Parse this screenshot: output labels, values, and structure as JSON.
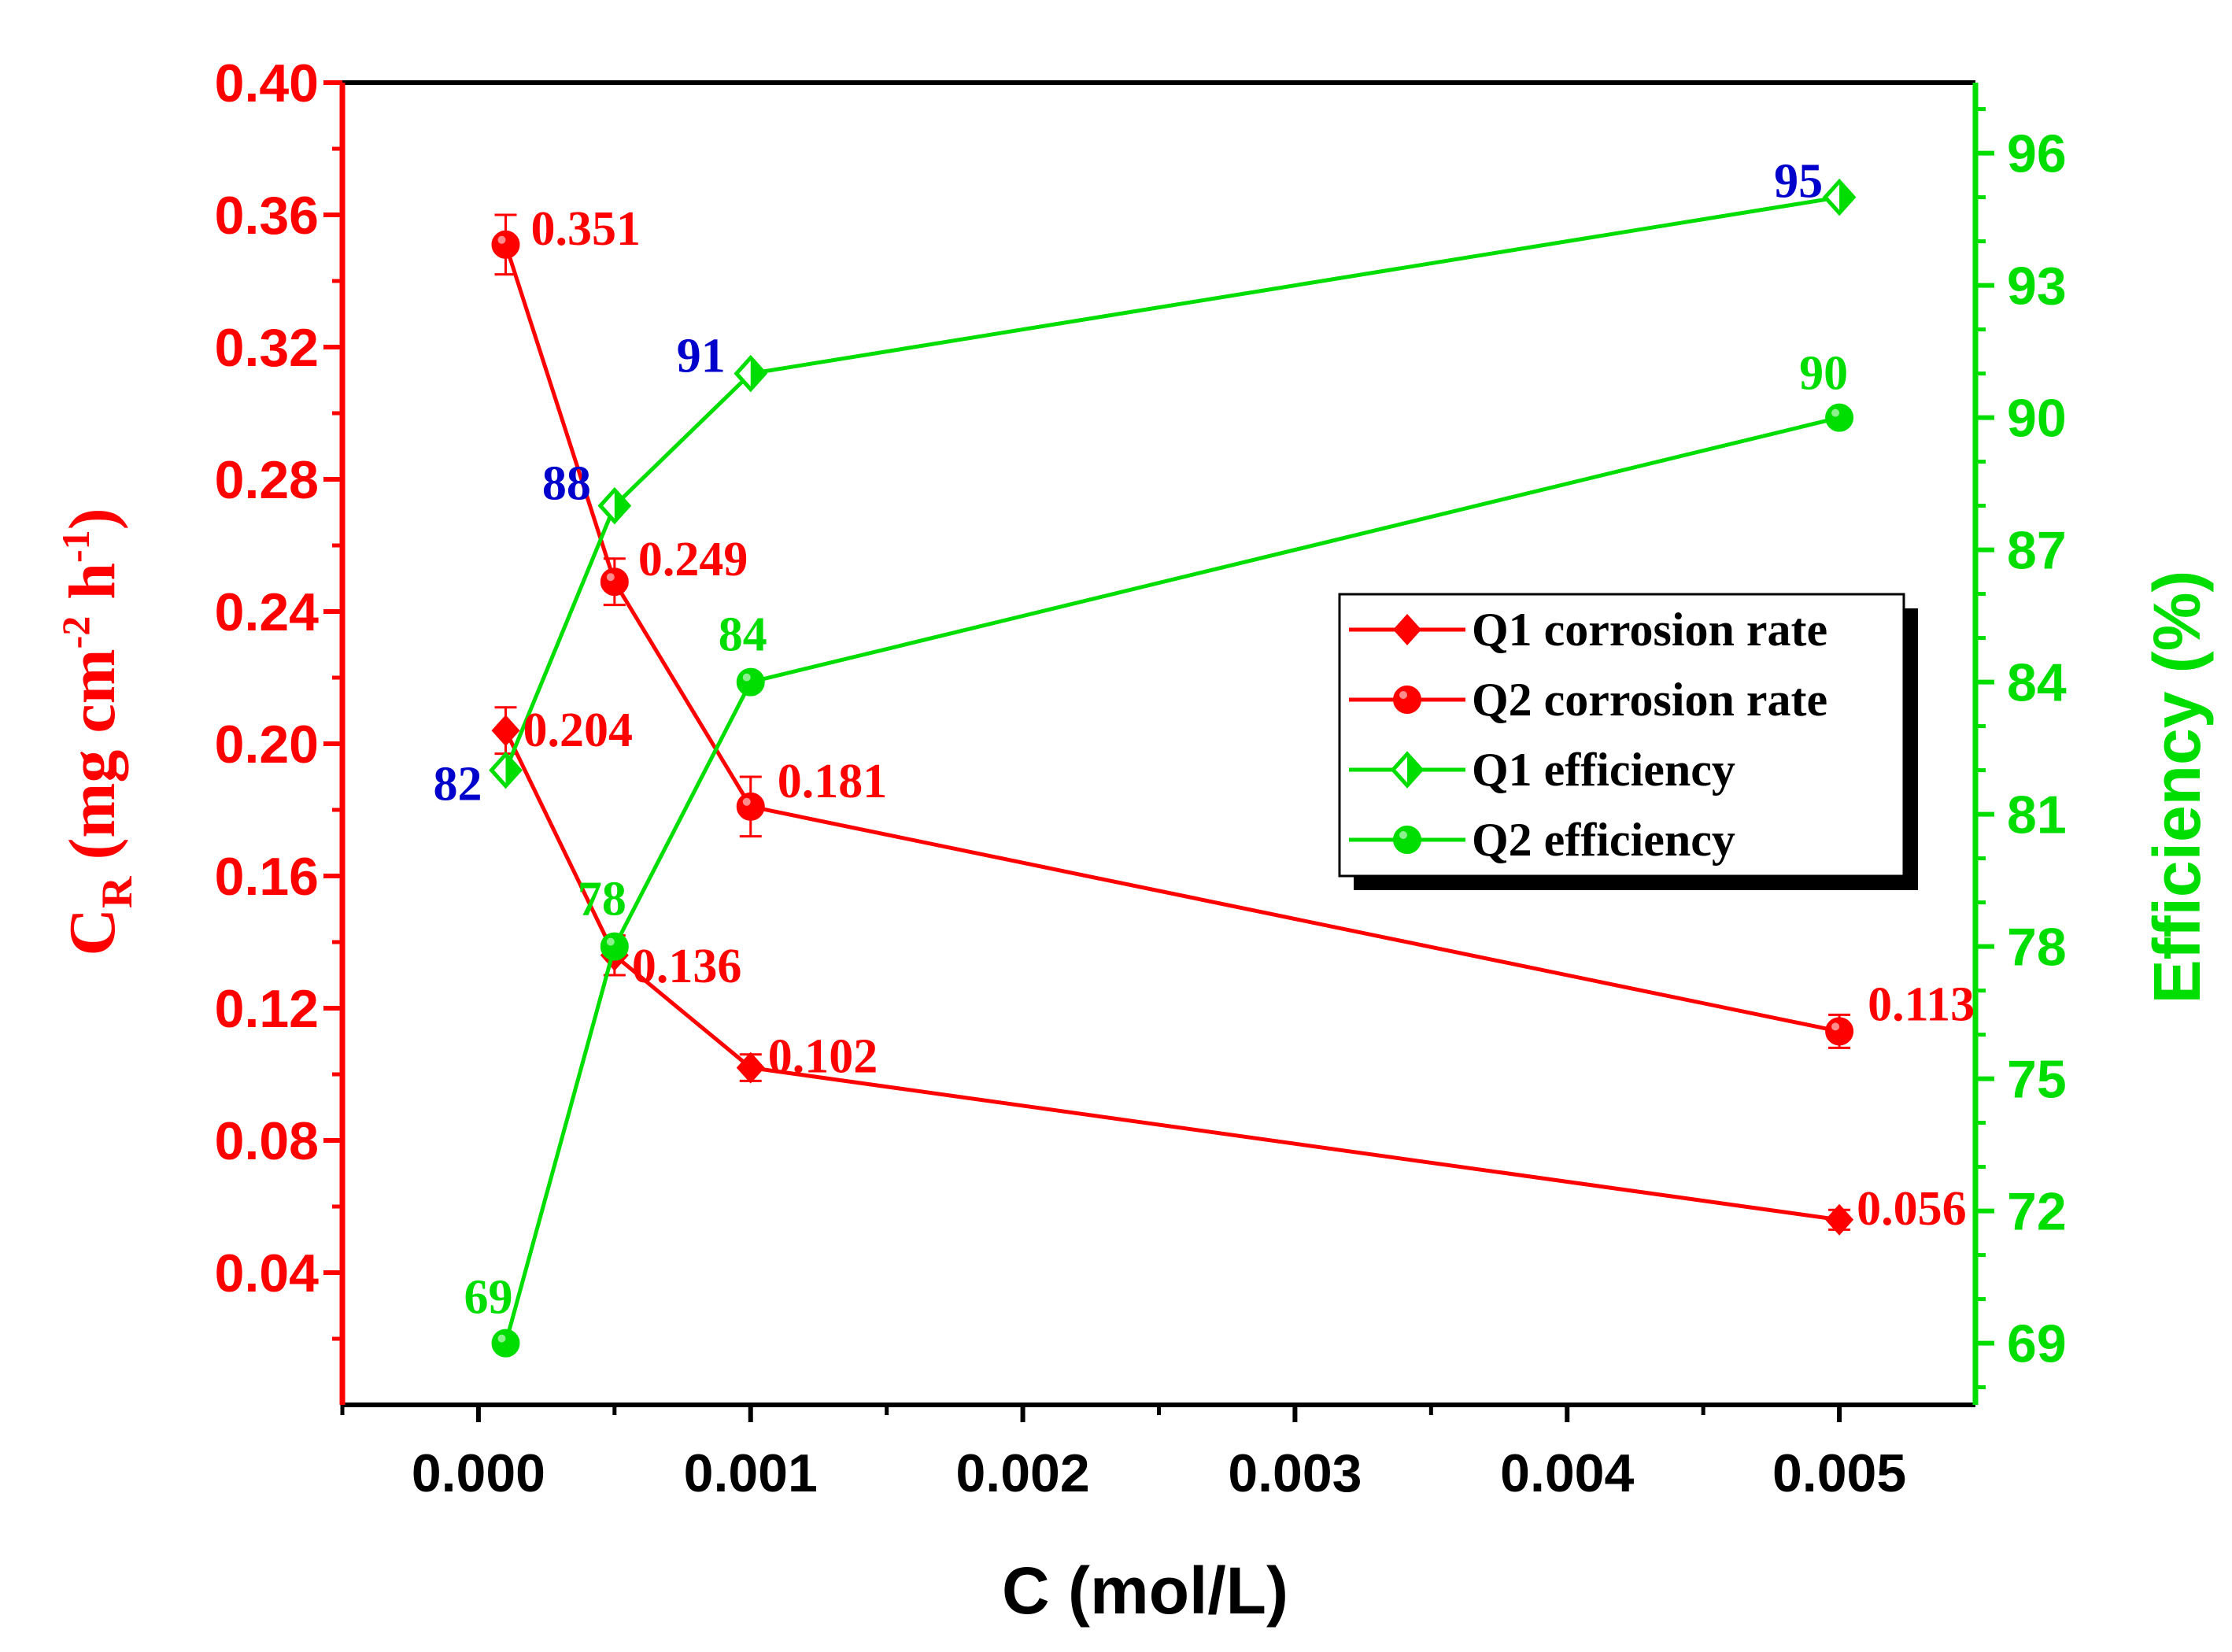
{
  "chart_data": {
    "type": "line",
    "xlabel": "C (mol/L)",
    "ylabel_left": {
      "main": "C",
      "sub": "R",
      "unit_open": " (mg cm",
      "exp1": "-2",
      "unit_mid": " h",
      "exp2": "-1",
      "unit_close": ")"
    },
    "ylabel_right": "Efficiency (%)",
    "xlim": [
      -0.0005,
      0.0055
    ],
    "ylim_left": [
      0.0,
      0.4
    ],
    "ylim_right": [
      67.6,
      97.6
    ],
    "x_ticks": [
      0.0,
      0.001,
      0.002,
      0.003,
      0.004,
      0.005
    ],
    "x_tick_labels": [
      "0.000",
      "0.001",
      "0.002",
      "0.003",
      "0.004",
      "0.005"
    ],
    "y_left_ticks": [
      0.04,
      0.08,
      0.12,
      0.16,
      0.2,
      0.24,
      0.28,
      0.32,
      0.36,
      0.4
    ],
    "y_left_tick_labels": [
      "0.04",
      "0.08",
      "0.12",
      "0.16",
      "0.20",
      "0.24",
      "0.28",
      "0.32",
      "0.36",
      "0.40"
    ],
    "y_right_ticks": [
      69,
      72,
      75,
      78,
      81,
      84,
      87,
      90,
      93,
      96
    ],
    "y_right_tick_labels": [
      "69",
      "72",
      "75",
      "78",
      "81",
      "84",
      "87",
      "90",
      "93",
      "96"
    ],
    "series": [
      {
        "name": "Q1 corrosion rate",
        "axis": "left",
        "marker": "diamond",
        "color": "#ff0000",
        "x": [
          0.0001,
          0.0005,
          0.001,
          0.005
        ],
        "y": [
          0.204,
          0.136,
          0.102,
          0.056
        ],
        "err": [
          0.007,
          0.006,
          0.004,
          0.003
        ],
        "labels": [
          "0.204",
          "0.136",
          "0.102",
          "0.056"
        ],
        "label_color": "#ff0000"
      },
      {
        "name": "Q2 corrosion rate",
        "axis": "left",
        "marker": "circle",
        "color": "#ff0000",
        "x": [
          0.0001,
          0.0005,
          0.001,
          0.005
        ],
        "y": [
          0.351,
          0.249,
          0.181,
          0.113
        ],
        "err": [
          0.009,
          0.007,
          0.009,
          0.005
        ],
        "labels": [
          "0.351",
          "0.249",
          "0.181",
          "0.113"
        ],
        "label_color": "#ff0000"
      },
      {
        "name": "Q1 efficiency",
        "axis": "right",
        "marker": "diamond-open",
        "color": "#00dd00",
        "x": [
          0.0001,
          0.0005,
          0.001,
          0.005
        ],
        "y": [
          82,
          88,
          91,
          95
        ],
        "labels": [
          "82",
          "88",
          "91",
          "95"
        ],
        "label_color": "#0000cc"
      },
      {
        "name": "Q2 efficiency",
        "axis": "right",
        "marker": "circle",
        "color": "#00dd00",
        "x": [
          0.0001,
          0.0005,
          0.001,
          0.005
        ],
        "y": [
          69,
          78,
          84,
          90
        ],
        "labels": [
          "69",
          "78",
          "84",
          "90"
        ],
        "label_color": "#00dd00"
      }
    ],
    "legend": {
      "position": "center-right",
      "entries": [
        "Q1 corrosion rate",
        "Q2 corrosion rate",
        "Q1 efficiency",
        "Q2 efficiency"
      ]
    }
  }
}
